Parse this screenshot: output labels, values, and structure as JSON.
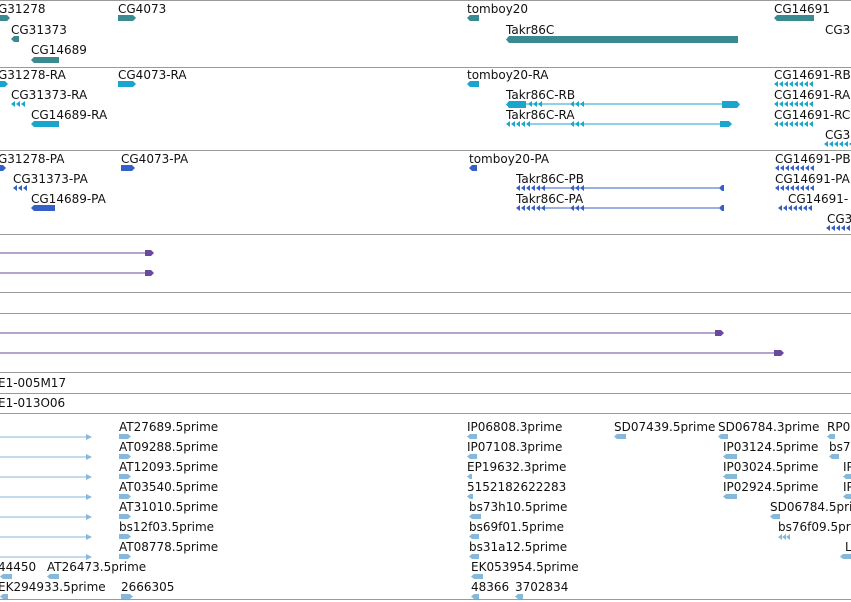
{
  "colors": {
    "gene": "#3a8a92",
    "transcript_cyan": "#1aa6cc",
    "protein": "#3560c8",
    "purple": "#6a4aa0",
    "est": "#86b8dc",
    "separator": "#9a9a9a"
  },
  "genes": [
    {
      "label": "G31278"
    },
    {
      "label": "CG4073"
    },
    {
      "label": "tomboy20"
    },
    {
      "label": "CG14691"
    },
    {
      "label": "CG31373"
    },
    {
      "label": "Takr86C"
    },
    {
      "label": "CG3"
    },
    {
      "label": "CG14689"
    }
  ],
  "transcripts": [
    {
      "label": "G31278-RA"
    },
    {
      "label": "CG4073-RA"
    },
    {
      "label": "tomboy20-RA"
    },
    {
      "label": "CG14691-RB"
    },
    {
      "label": "CG31373-RA"
    },
    {
      "label": "Takr86C-RB"
    },
    {
      "label": "CG14691-RA"
    },
    {
      "label": "CG14689-RA"
    },
    {
      "label": "Takr86C-RA"
    },
    {
      "label": "CG14691-RC"
    },
    {
      "label": "CG3"
    }
  ],
  "proteins": [
    {
      "label": "G31278-PA"
    },
    {
      "label": "CG4073-PA"
    },
    {
      "label": "tomboy20-PA"
    },
    {
      "label": "CG14691-PB"
    },
    {
      "label": "CG31373-PA"
    },
    {
      "label": "Takr86C-PB"
    },
    {
      "label": "CG14691-PA"
    },
    {
      "label": "CG14689-PA"
    },
    {
      "label": "Takr86C-PA"
    },
    {
      "label": "CG14691-"
    },
    {
      "label": "CG3"
    }
  ],
  "clones": [
    {
      "label": "E1-005M17"
    },
    {
      "label": "E1-013O06"
    }
  ],
  "ests": [
    {
      "label": "AT27689.5prime"
    },
    {
      "label": "IP06808.3prime"
    },
    {
      "label": "SD07439.5prime"
    },
    {
      "label": "SD06784.3prime"
    },
    {
      "label": "RP0"
    },
    {
      "label": "AT09288.5prime"
    },
    {
      "label": "IP07108.3prime"
    },
    {
      "label": "IP03124.5prime"
    },
    {
      "label": "bs7"
    },
    {
      "label": "AT12093.5prime"
    },
    {
      "label": "EP19632.3prime"
    },
    {
      "label": "IP03024.5prime"
    },
    {
      "label": "IP"
    },
    {
      "label": "AT03540.5prime"
    },
    {
      "label": "5152182622283"
    },
    {
      "label": "IP02924.5prime"
    },
    {
      "label": "IP"
    },
    {
      "label": "AT31010.5prime"
    },
    {
      "label": "bs73h10.5prime"
    },
    {
      "label": "SD06784.5prime"
    },
    {
      "label": "bs12f03.5prime"
    },
    {
      "label": "bs69f01.5prime"
    },
    {
      "label": "bs76f09.5prime"
    },
    {
      "label": "AT08778.5prime"
    },
    {
      "label": "bs31a12.5prime"
    },
    {
      "label": "L"
    },
    {
      "label": "44450"
    },
    {
      "label": "AT26473.5prime"
    },
    {
      "label": "EK053954.5prime"
    },
    {
      "label": "EK294933.5prime"
    },
    {
      "label": "2666305"
    },
    {
      "label": "48366"
    },
    {
      "label": "3702834"
    }
  ]
}
